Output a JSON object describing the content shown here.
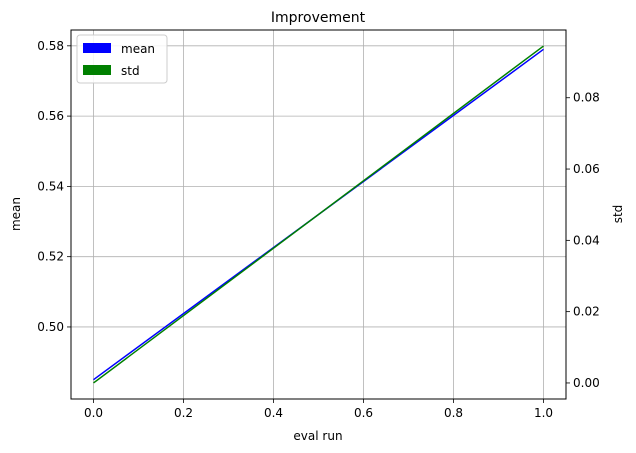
{
  "chart_data": {
    "type": "line",
    "title": "Improvement",
    "xlabel": "eval run",
    "ylabel_left": "mean",
    "ylabel_right": "std",
    "xlim": [
      -0.05,
      1.05
    ],
    "ylim_left": [
      0.4795,
      0.5845
    ],
    "ylim_right": [
      -0.0045,
      0.099
    ],
    "x_ticks": [
      0.0,
      0.2,
      0.4,
      0.6,
      0.8,
      1.0
    ],
    "x_tick_labels": [
      "0.0",
      "0.2",
      "0.4",
      "0.6",
      "0.8",
      "1.0"
    ],
    "y_left_ticks": [
      0.5,
      0.52,
      0.54,
      0.56,
      0.58
    ],
    "y_left_tick_labels": [
      "0.50",
      "0.52",
      "0.54",
      "0.56",
      "0.58"
    ],
    "y_right_ticks": [
      0.0,
      0.02,
      0.04,
      0.06,
      0.08
    ],
    "y_right_tick_labels": [
      "0.00",
      "0.02",
      "0.04",
      "0.06",
      "0.08"
    ],
    "grid": true,
    "legend_position": "top-left",
    "series": [
      {
        "name": "mean",
        "axis": "left",
        "color": "#0000ff",
        "x": [
          0.0,
          1.0
        ],
        "y": [
          0.485,
          0.579
        ]
      },
      {
        "name": "std",
        "axis": "right",
        "color": "#008000",
        "x": [
          0.0,
          1.0
        ],
        "y": [
          0.0,
          0.0945
        ]
      }
    ]
  }
}
